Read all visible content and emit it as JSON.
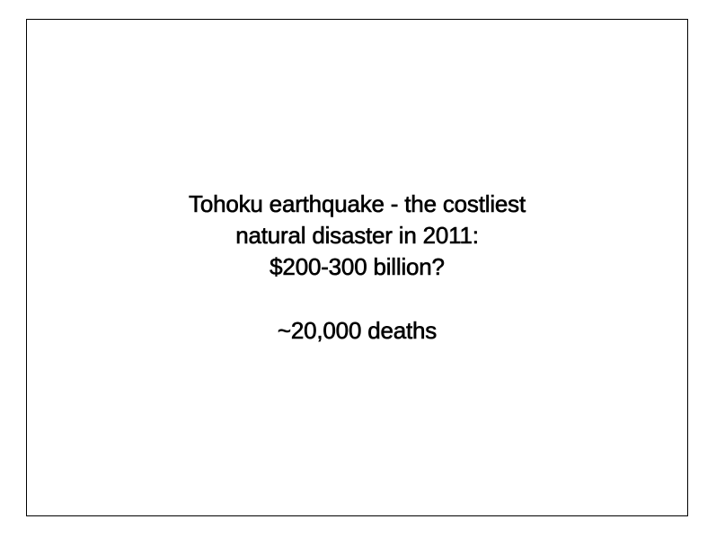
{
  "slide": {
    "headline_lines": [
      "Tohoku earthquake - the costliest",
      "natural disaster in 2011:",
      "$200-300 billion?"
    ],
    "deaths": "~20,000 deaths"
  }
}
